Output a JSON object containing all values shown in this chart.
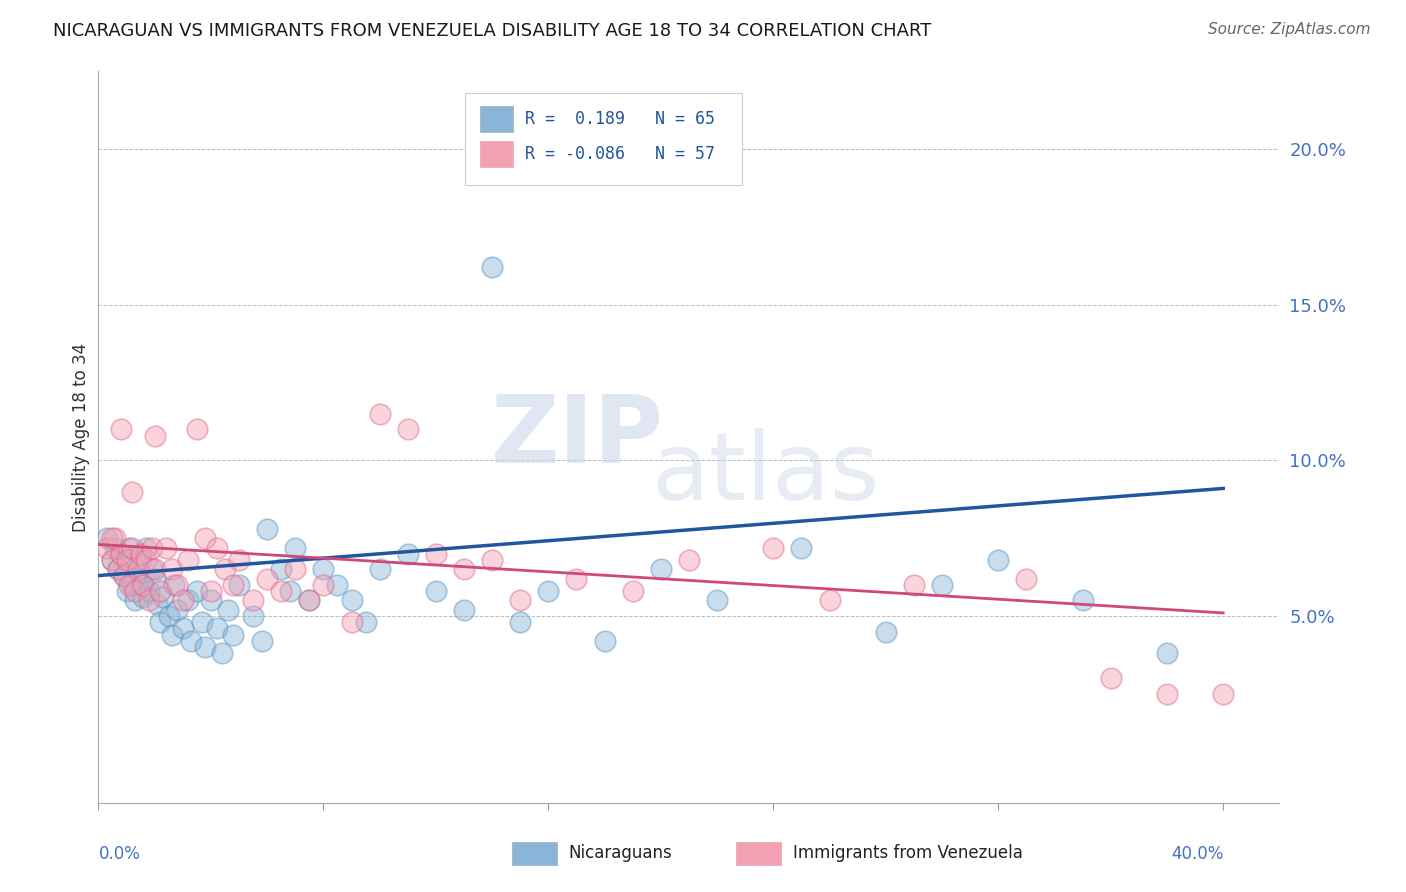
{
  "title": "NICARAGUAN VS IMMIGRANTS FROM VENEZUELA DISABILITY AGE 18 TO 34 CORRELATION CHART",
  "source": "Source: ZipAtlas.com",
  "ylabel": "Disability Age 18 to 34",
  "right_yticks": [
    "20.0%",
    "15.0%",
    "10.0%",
    "5.0%"
  ],
  "right_ytick_vals": [
    0.2,
    0.15,
    0.1,
    0.05
  ],
  "xlim": [
    0.0,
    0.42
  ],
  "ylim": [
    -0.01,
    0.225
  ],
  "blue_color": "#8ab4d8",
  "pink_color": "#f4a0b5",
  "blue_line_color": "#2255a0",
  "pink_line_color": "#d04878",
  "blue_scatter_edge": "#5090c0",
  "pink_scatter_edge": "#e06080",
  "nic_trend_x0": 0.0,
  "nic_trend_y0": 0.063,
  "nic_trend_x1": 0.4,
  "nic_trend_y1": 0.091,
  "ven_trend_x0": 0.0,
  "ven_trend_y0": 0.073,
  "ven_trend_x1": 0.4,
  "ven_trend_y1": 0.051,
  "nic_x": [
    0.003,
    0.005,
    0.006,
    0.007,
    0.008,
    0.009,
    0.01,
    0.01,
    0.011,
    0.012,
    0.013,
    0.014,
    0.015,
    0.015,
    0.016,
    0.017,
    0.018,
    0.019,
    0.02,
    0.021,
    0.022,
    0.023,
    0.025,
    0.026,
    0.027,
    0.028,
    0.03,
    0.032,
    0.033,
    0.035,
    0.037,
    0.038,
    0.04,
    0.042,
    0.044,
    0.046,
    0.048,
    0.05,
    0.055,
    0.058,
    0.06,
    0.065,
    0.068,
    0.07,
    0.075,
    0.08,
    0.085,
    0.09,
    0.095,
    0.1,
    0.11,
    0.12,
    0.13,
    0.14,
    0.15,
    0.16,
    0.18,
    0.2,
    0.22,
    0.25,
    0.28,
    0.3,
    0.32,
    0.35,
    0.38
  ],
  "nic_y": [
    0.075,
    0.068,
    0.072,
    0.065,
    0.07,
    0.063,
    0.067,
    0.058,
    0.072,
    0.06,
    0.055,
    0.064,
    0.06,
    0.068,
    0.056,
    0.072,
    0.058,
    0.065,
    0.062,
    0.054,
    0.048,
    0.056,
    0.05,
    0.044,
    0.06,
    0.052,
    0.046,
    0.055,
    0.042,
    0.058,
    0.048,
    0.04,
    0.055,
    0.046,
    0.038,
    0.052,
    0.044,
    0.06,
    0.05,
    0.042,
    0.078,
    0.065,
    0.058,
    0.072,
    0.055,
    0.065,
    0.06,
    0.055,
    0.048,
    0.065,
    0.07,
    0.058,
    0.052,
    0.162,
    0.048,
    0.058,
    0.042,
    0.065,
    0.055,
    0.072,
    0.045,
    0.06,
    0.068,
    0.055,
    0.038
  ],
  "ven_x": [
    0.003,
    0.005,
    0.006,
    0.007,
    0.008,
    0.009,
    0.01,
    0.011,
    0.012,
    0.013,
    0.014,
    0.015,
    0.016,
    0.017,
    0.018,
    0.019,
    0.02,
    0.022,
    0.024,
    0.026,
    0.028,
    0.03,
    0.032,
    0.035,
    0.038,
    0.04,
    0.042,
    0.045,
    0.048,
    0.05,
    0.055,
    0.06,
    0.065,
    0.07,
    0.075,
    0.08,
    0.09,
    0.1,
    0.11,
    0.12,
    0.13,
    0.14,
    0.15,
    0.17,
    0.19,
    0.21,
    0.24,
    0.26,
    0.29,
    0.33,
    0.36,
    0.38,
    0.4,
    0.005,
    0.008,
    0.012,
    0.02
  ],
  "ven_y": [
    0.072,
    0.068,
    0.075,
    0.065,
    0.07,
    0.063,
    0.068,
    0.06,
    0.072,
    0.058,
    0.065,
    0.07,
    0.06,
    0.068,
    0.055,
    0.072,
    0.065,
    0.058,
    0.072,
    0.065,
    0.06,
    0.055,
    0.068,
    0.11,
    0.075,
    0.058,
    0.072,
    0.065,
    0.06,
    0.068,
    0.055,
    0.062,
    0.058,
    0.065,
    0.055,
    0.06,
    0.048,
    0.115,
    0.11,
    0.07,
    0.065,
    0.068,
    0.055,
    0.062,
    0.058,
    0.068,
    0.072,
    0.055,
    0.06,
    0.062,
    0.03,
    0.025,
    0.025,
    0.075,
    0.11,
    0.09,
    0.108
  ]
}
